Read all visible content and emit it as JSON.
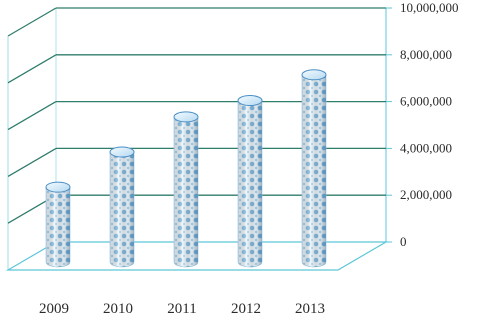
{
  "chart_data": {
    "type": "bar",
    "style": "3d-cylinder",
    "categories": [
      "2009",
      "2010",
      "2011",
      "2012",
      "2013"
    ],
    "values": [
      3200000,
      4700000,
      6200000,
      6900000,
      8000000
    ],
    "y_ticks": [
      "0",
      "2,000,000",
      "4,000,000",
      "6,000,000",
      "8,000,000",
      "10,000,000"
    ],
    "ylim": [
      0,
      10000000
    ],
    "grid": true,
    "legend": "none",
    "colors": {
      "bar_light": "#e8f4fb",
      "bar_dot": "#6fb0dc",
      "bar_dark": "#4b8fc6",
      "grid_major": "#2f7d6b",
      "grid_minor": "#5cc6d8"
    }
  }
}
